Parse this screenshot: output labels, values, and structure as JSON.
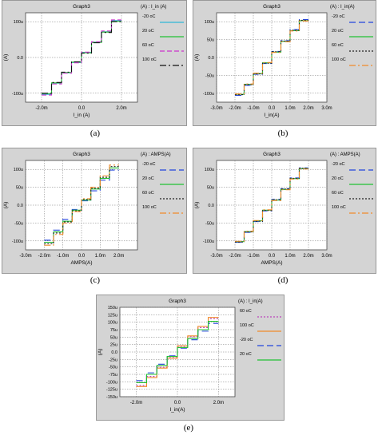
{
  "colors": {
    "frame_bg": "#d4d4d4",
    "plot_bg": "#ffffff",
    "grid": "#777777",
    "border": "#444444"
  },
  "chart_data": [
    {
      "id": "a",
      "type": "line",
      "caption": "(a)",
      "title": "Graph3",
      "xlabel": "I_in (A)",
      "ylabel": "(A)",
      "legend_header": "(A) : I_in (A)",
      "xlim": [
        -0.0028,
        0.0028
      ],
      "ylim": [
        -0.000125,
        0.000125
      ],
      "xticks": [
        {
          "v": -0.002,
          "label": "-2.0m"
        },
        {
          "v": 0,
          "label": "0.0"
        },
        {
          "v": 0.002,
          "label": "2.0m"
        }
      ],
      "yticks": [
        {
          "v": 0.0001,
          "label": "100u"
        },
        {
          "v": 0,
          "label": "0.0"
        },
        {
          "v": -0.0001,
          "label": "-100u"
        }
      ],
      "x_range": [
        -0.002,
        0.002
      ],
      "series": [
        {
          "name": "-20 oC",
          "color": "#2fb8d8",
          "dash": "",
          "levels": [
            -103,
            -72,
            -43,
            -14,
            14,
            43,
            72,
            103
          ]
        },
        {
          "name": "20 oC",
          "color": "#22c033",
          "dash": "",
          "levels": [
            -101,
            -71,
            -42,
            -13,
            13,
            42,
            71,
            101
          ]
        },
        {
          "name": "60 oC",
          "color": "#cc33cc",
          "dash": "6 3",
          "levels": [
            -105,
            -74,
            -44,
            -15,
            15,
            44,
            74,
            105
          ]
        },
        {
          "name": "100 oC",
          "color": "#111111",
          "dash": "8 3 2 3",
          "levels": [
            -100,
            -70,
            -41,
            -12,
            12,
            41,
            70,
            100
          ]
        }
      ]
    },
    {
      "id": "b",
      "type": "line",
      "caption": "(b)",
      "title": "Graph3",
      "xlabel": "I_in(A)",
      "ylabel": "(A)",
      "legend_header": "(A) : I_in(A)",
      "xlim": [
        -0.003,
        0.003
      ],
      "ylim": [
        -0.000125,
        0.000125
      ],
      "xticks": [
        {
          "v": -0.003,
          "label": "-3.0m"
        },
        {
          "v": -0.002,
          "label": "-2.0m"
        },
        {
          "v": -0.001,
          "label": "-1.0m"
        },
        {
          "v": 0,
          "label": "0.0"
        },
        {
          "v": 0.001,
          "label": "1.0m"
        },
        {
          "v": 0.002,
          "label": "2.0m"
        },
        {
          "v": 0.003,
          "label": "3.0m"
        }
      ],
      "yticks": [
        {
          "v": 0.0001,
          "label": "100u"
        },
        {
          "v": 5e-05,
          "label": "50u"
        },
        {
          "v": 0,
          "label": "0.0"
        },
        {
          "v": -5e-05,
          "label": "-50u"
        },
        {
          "v": -0.0001,
          "label": "-100u"
        }
      ],
      "x_range": [
        -0.002,
        0.002
      ],
      "series": [
        {
          "name": "-20 oC",
          "color": "#2244dd",
          "dash": "8 4",
          "levels": [
            -106,
            -78,
            -47,
            -17,
            17,
            47,
            78,
            106
          ]
        },
        {
          "name": "20 oC",
          "color": "#22c033",
          "dash": "",
          "levels": [
            -103,
            -75,
            -45,
            -15,
            15,
            45,
            75,
            103
          ]
        },
        {
          "name": "60 oC",
          "color": "#222222",
          "dash": "2 2",
          "levels": [
            -104,
            -76,
            -46,
            -16,
            16,
            46,
            76,
            104
          ]
        },
        {
          "name": "100 oC",
          "color": "#f08a2a",
          "dash": "8 3 2 3",
          "levels": [
            -102,
            -74,
            -44,
            -14,
            14,
            44,
            74,
            102
          ]
        }
      ]
    },
    {
      "id": "c",
      "type": "line",
      "caption": "(c)",
      "title": "Graph3",
      "xlabel": "AMPS(A)",
      "ylabel": "(A)",
      "legend_header": "(A) : AMPS(A)",
      "xlim": [
        -0.003,
        0.003
      ],
      "ylim": [
        -0.000125,
        0.000125
      ],
      "xticks": [
        {
          "v": -0.003,
          "label": "-3.0m"
        },
        {
          "v": -0.002,
          "label": "-2.0m"
        },
        {
          "v": -0.001,
          "label": "-1.0m"
        },
        {
          "v": 0,
          "label": "0.0"
        },
        {
          "v": 0.001,
          "label": "1.0m"
        },
        {
          "v": 0.002,
          "label": "2.0m"
        }
      ],
      "yticks": [
        {
          "v": 0.0001,
          "label": "100u"
        },
        {
          "v": 5e-05,
          "label": "50u"
        },
        {
          "v": 0,
          "label": "0.0"
        },
        {
          "v": -5e-05,
          "label": "-50u"
        },
        {
          "v": -0.0001,
          "label": "-100u"
        }
      ],
      "x_range": [
        -0.002,
        0.002
      ],
      "series": [
        {
          "name": "-20 oC",
          "color": "#2244dd",
          "dash": "8 4",
          "levels": [
            -98,
            -70,
            -40,
            -12,
            12,
            40,
            70,
            98
          ]
        },
        {
          "name": "20 oC",
          "color": "#22c033",
          "dash": "",
          "levels": [
            -104,
            -75,
            -45,
            -14,
            14,
            45,
            75,
            104
          ]
        },
        {
          "name": "60 oC",
          "color": "#222222",
          "dash": "2 2",
          "levels": [
            -108,
            -78,
            -47,
            -16,
            16,
            47,
            78,
            108
          ]
        },
        {
          "name": "100 oC",
          "color": "#f08a2a",
          "dash": "8 3 2 3",
          "levels": [
            -112,
            -82,
            -50,
            -18,
            18,
            50,
            82,
            112
          ]
        }
      ]
    },
    {
      "id": "d",
      "type": "line",
      "caption": "(d)",
      "title": "Graph3",
      "xlabel": "AMPS(A)",
      "ylabel": "(A)",
      "legend_header": "(A) : AMPS(A)",
      "xlim": [
        -0.003,
        0.003
      ],
      "ylim": [
        -0.000125,
        0.000125
      ],
      "xticks": [
        {
          "v": -0.003,
          "label": "-3.0m"
        },
        {
          "v": -0.002,
          "label": "-2.0m"
        },
        {
          "v": -0.001,
          "label": "-1.0m"
        },
        {
          "v": 0,
          "label": "0.0"
        },
        {
          "v": 0.001,
          "label": "1.0m"
        },
        {
          "v": 0.002,
          "label": "2.0m"
        },
        {
          "v": 0.003,
          "label": "3.0m"
        }
      ],
      "yticks": [
        {
          "v": 0.0001,
          "label": "100u"
        },
        {
          "v": 5e-05,
          "label": "50u"
        },
        {
          "v": 0,
          "label": "0.0"
        },
        {
          "v": -5e-05,
          "label": "-50u"
        },
        {
          "v": -0.0001,
          "label": "-100u"
        }
      ],
      "x_range": [
        -0.002,
        0.002
      ],
      "series": [
        {
          "name": "-20 oC",
          "color": "#2244dd",
          "dash": "8 4",
          "levels": [
            -104,
            -76,
            -46,
            -16,
            16,
            46,
            76,
            104
          ]
        },
        {
          "name": "20 oC",
          "color": "#22c033",
          "dash": "",
          "levels": [
            -102,
            -74,
            -44,
            -14,
            14,
            44,
            74,
            102
          ]
        },
        {
          "name": "60 oC",
          "color": "#222222",
          "dash": "2 2",
          "levels": [
            -103,
            -75,
            -45,
            -15,
            15,
            45,
            75,
            103
          ]
        },
        {
          "name": "100 oC",
          "color": "#f08a2a",
          "dash": "8 3 2 3",
          "levels": [
            -101,
            -73,
            -43,
            -13,
            13,
            43,
            73,
            101
          ]
        }
      ]
    },
    {
      "id": "e",
      "type": "line",
      "caption": "(e)",
      "title": "Graph3",
      "xlabel": "I_in(A)",
      "ylabel": "(A)",
      "legend_header": "(A) : I_in(A)",
      "xlim": [
        -0.0028,
        0.0028
      ],
      "ylim": [
        -0.00015,
        0.00015
      ],
      "xticks": [
        {
          "v": -0.002,
          "label": "-2.0m"
        },
        {
          "v": 0,
          "label": "0.0"
        },
        {
          "v": 0.002,
          "label": "2.0m"
        }
      ],
      "yticks": [
        {
          "v": 0.00015,
          "label": "150u"
        },
        {
          "v": 0.000125,
          "label": "125u"
        },
        {
          "v": 0.0001,
          "label": "100u"
        },
        {
          "v": 7.5e-05,
          "label": "75u"
        },
        {
          "v": 5e-05,
          "label": "50u"
        },
        {
          "v": 2.5e-05,
          "label": "25u"
        },
        {
          "v": 0,
          "label": "0.0"
        },
        {
          "v": -2.5e-05,
          "label": "-25u"
        },
        {
          "v": -5e-05,
          "label": "-50u"
        },
        {
          "v": -7.5e-05,
          "label": "-75u"
        },
        {
          "v": -0.0001,
          "label": "-100u"
        },
        {
          "v": -0.000125,
          "label": "-125u"
        },
        {
          "v": -0.00015,
          "label": "-150u"
        }
      ],
      "x_range": [
        -0.002,
        0.002
      ],
      "series": [
        {
          "name": "60 oC",
          "color": "#bb44bb",
          "dash": "2 2",
          "levels": [
            -112,
            -82,
            -51,
            -19,
            19,
            51,
            82,
            112
          ]
        },
        {
          "name": "100 oC",
          "color": "#f08a2a",
          "dash": "",
          "levels": [
            -116,
            -86,
            -54,
            -21,
            21,
            54,
            86,
            116
          ]
        },
        {
          "name": "-20 oC",
          "color": "#2244dd",
          "dash": "8 4",
          "levels": [
            -96,
            -70,
            -41,
            -13,
            13,
            41,
            70,
            96
          ]
        },
        {
          "name": "20 oC",
          "color": "#22c033",
          "dash": "",
          "levels": [
            -103,
            -75,
            -45,
            -15,
            15,
            45,
            75,
            103
          ]
        }
      ]
    }
  ]
}
